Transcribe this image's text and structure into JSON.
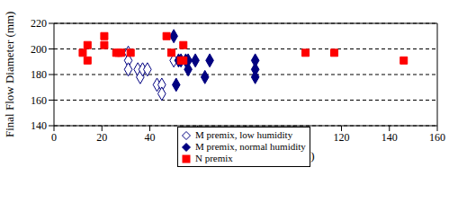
{
  "chart_data": {
    "type": "scatter",
    "x_label": "Premix Age at Casting (days)",
    "y_label": "Final Flow Diameter (mm)",
    "xlim": [
      0,
      160
    ],
    "xticks": [
      0,
      20,
      40,
      60,
      80,
      100,
      120,
      140,
      160
    ],
    "ylim": [
      140,
      220
    ],
    "yticks": [
      140,
      160,
      180,
      200,
      220
    ],
    "grid": "y",
    "legend": "bottom left",
    "series": [
      {
        "name": "M premix, low humidity",
        "color": "#000080",
        "marker": "open_diamond",
        "x": [
          31,
          31,
          31,
          35,
          36,
          37,
          39,
          43,
          45,
          45,
          50
        ],
        "values": [
          197,
          191,
          184,
          184,
          178,
          184,
          184,
          172,
          172,
          165,
          191
        ]
      },
      {
        "name": "M premix, normal humidity",
        "color": "#000080",
        "marker": "diamond",
        "x": [
          50,
          51,
          52,
          53,
          55,
          56,
          56,
          59,
          63,
          65,
          84,
          84,
          84
        ],
        "values": [
          210,
          172,
          191,
          191,
          191,
          184,
          191,
          191,
          178,
          191,
          191,
          184,
          178
        ]
      },
      {
        "name": "N premix",
        "color": "#ff0000",
        "marker": "square",
        "x": [
          12,
          14,
          14,
          21,
          21,
          26,
          27,
          28,
          32,
          47,
          49,
          53,
          54,
          54,
          105,
          117,
          146
        ],
        "values": [
          197,
          191,
          203,
          210,
          203,
          197,
          197,
          197,
          197,
          210,
          197,
          191,
          203,
          191,
          197,
          197,
          191
        ]
      }
    ]
  }
}
